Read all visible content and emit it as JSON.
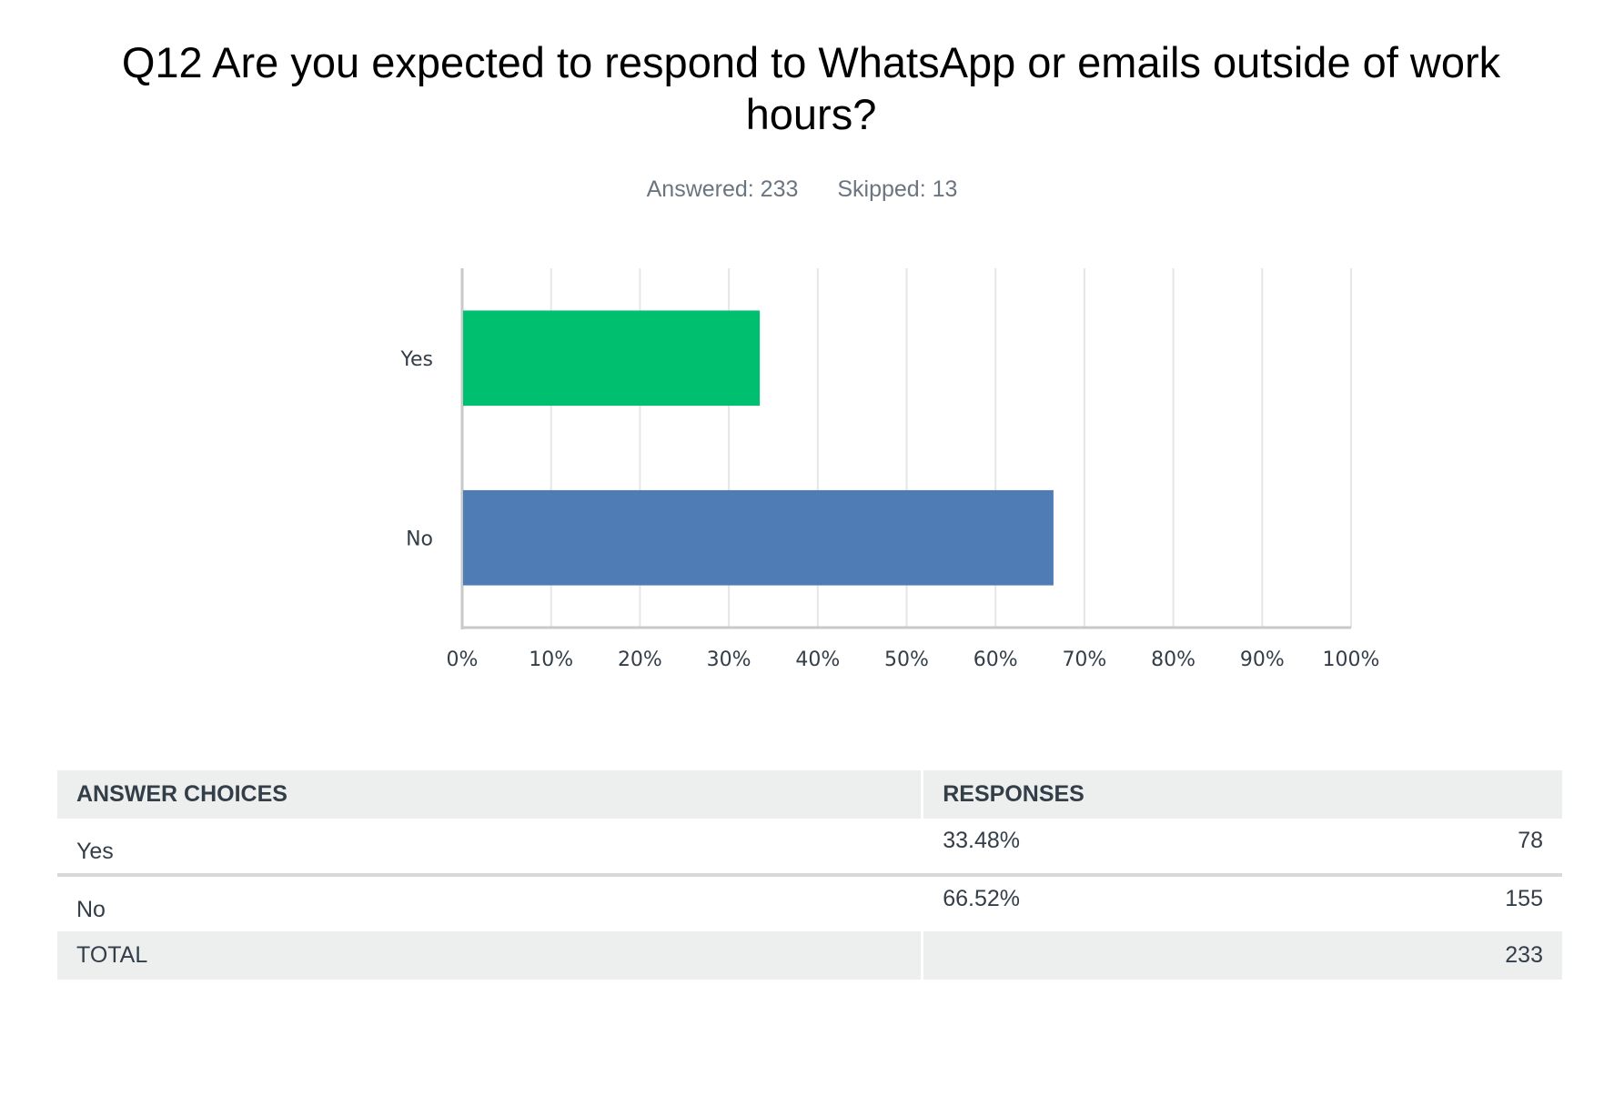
{
  "question": {
    "title": "Q12 Are you expected to respond to WhatsApp or emails outside of work hours?",
    "answered_label": "Answered: 233",
    "skipped_label": "Skipped: 13"
  },
  "colors": {
    "yes": "#00bf6f",
    "no": "#507cb6",
    "grid": "#e5e6e6",
    "axis": "#c8c9c9"
  },
  "chart_data": {
    "type": "bar",
    "orientation": "horizontal",
    "categories": [
      "Yes",
      "No"
    ],
    "values": [
      33.48,
      66.52
    ],
    "xlim": [
      0,
      100
    ],
    "xticks": [
      "0%",
      "10%",
      "20%",
      "30%",
      "40%",
      "50%",
      "60%",
      "70%",
      "80%",
      "90%",
      "100%"
    ],
    "grid": true
  },
  "table": {
    "headers": [
      "ANSWER CHOICES",
      "RESPONSES"
    ],
    "rows": [
      {
        "choice": "Yes",
        "percent": "33.48%",
        "count": "78"
      },
      {
        "choice": "No",
        "percent": "66.52%",
        "count": "155"
      }
    ],
    "total": {
      "label": "TOTAL",
      "count": "233"
    }
  }
}
